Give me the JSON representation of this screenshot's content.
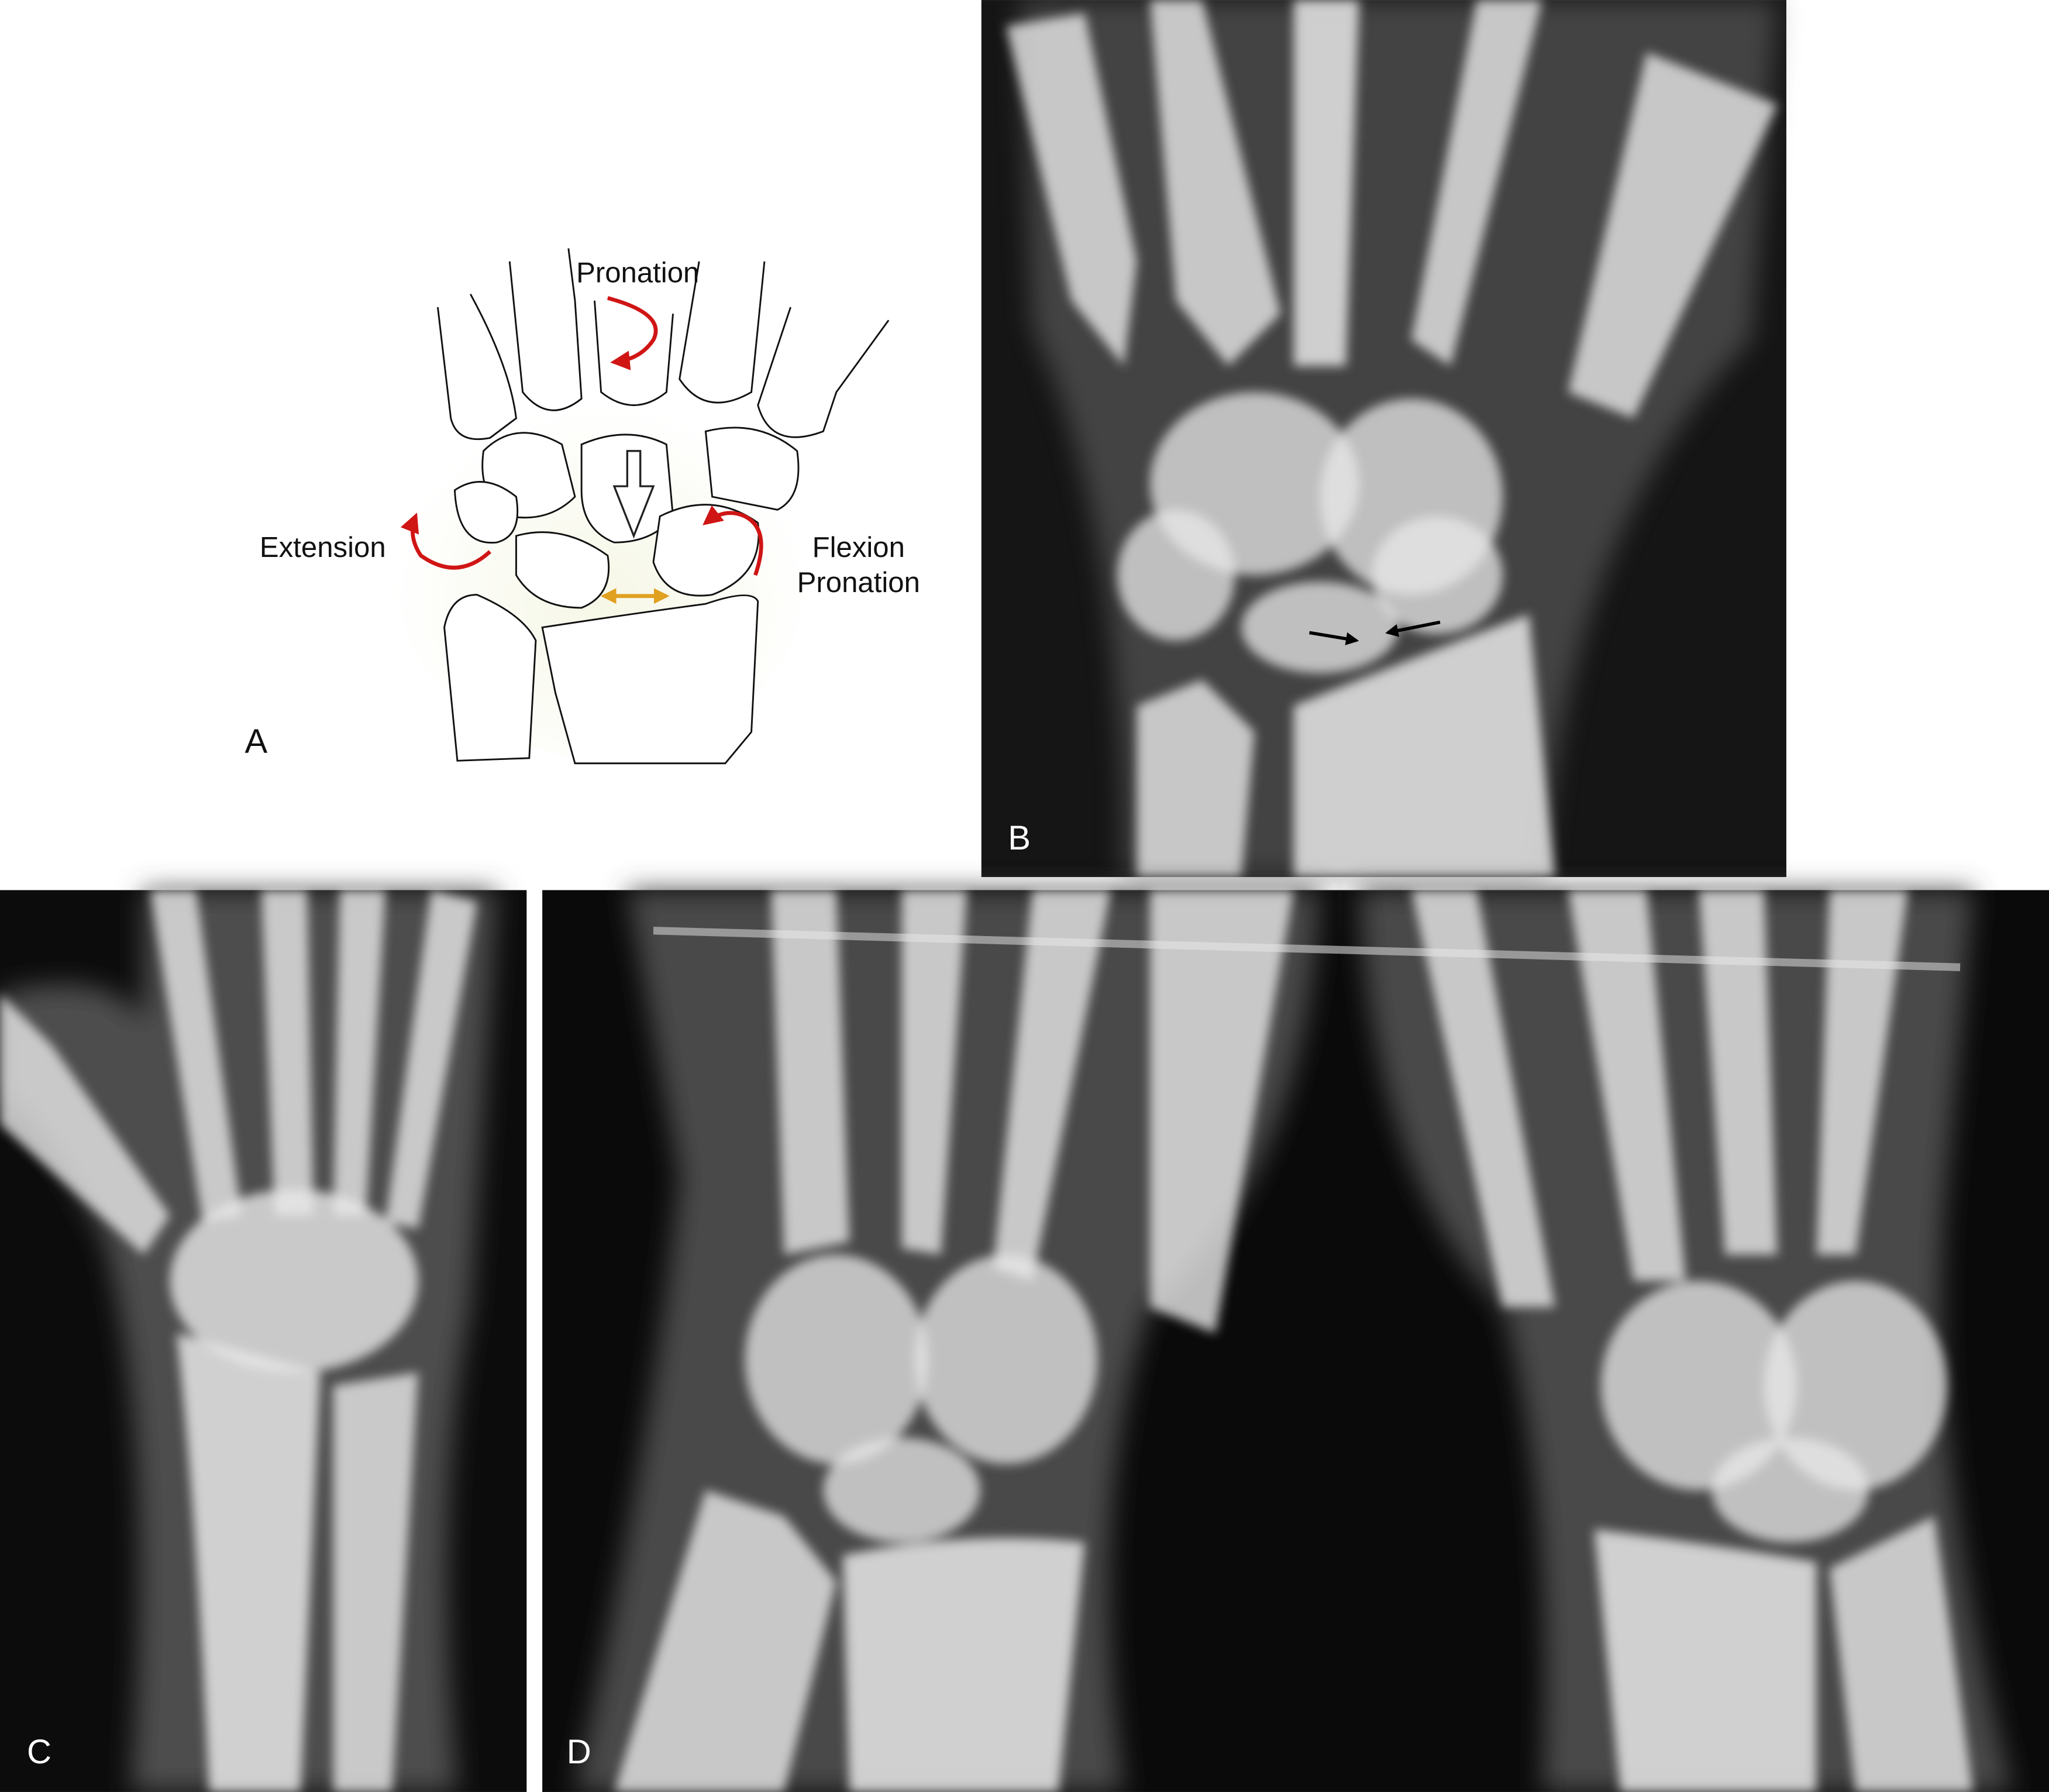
{
  "panels": [
    {
      "label": "A",
      "annotations": [
        "Pronation",
        "Extension",
        "Flexion",
        "Pronation"
      ]
    },
    {
      "label": "B"
    },
    {
      "label": "C"
    },
    {
      "label": "D"
    }
  ]
}
